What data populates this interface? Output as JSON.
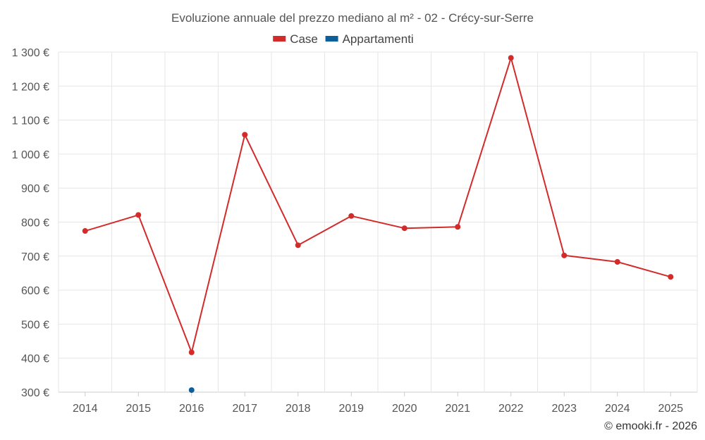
{
  "chart_data": {
    "type": "line",
    "title": "Evoluzione annuale del prezzo mediano al m² - 02 - Crécy-sur-Serre",
    "categories": [
      "2014",
      "2015",
      "2016",
      "2017",
      "2018",
      "2019",
      "2020",
      "2021",
      "2022",
      "2023",
      "2024",
      "2025"
    ],
    "series": [
      {
        "name": "Case",
        "color": "#d32a2a",
        "values": [
          774,
          821,
          417,
          1057,
          732,
          818,
          782,
          786,
          1283,
          702,
          683,
          639
        ]
      },
      {
        "name": "Appartamenti",
        "color": "#0c5f9a",
        "values": [
          null,
          null,
          306,
          null,
          null,
          null,
          null,
          null,
          null,
          null,
          null,
          null
        ]
      }
    ],
    "ylim": [
      300,
      1300
    ],
    "yticks": [
      300,
      400,
      500,
      600,
      700,
      800,
      900,
      1000,
      1100,
      1200,
      1300
    ],
    "ytick_labels": [
      "300 €",
      "400 €",
      "500 €",
      "600 €",
      "700 €",
      "800 €",
      "900 €",
      "1 000 €",
      "1 100 €",
      "1 200 €",
      "1 300 €"
    ],
    "xlabel": "",
    "ylabel": "",
    "legend": "top-center",
    "grid": true,
    "credit": "© emooki.fr - 2026"
  }
}
